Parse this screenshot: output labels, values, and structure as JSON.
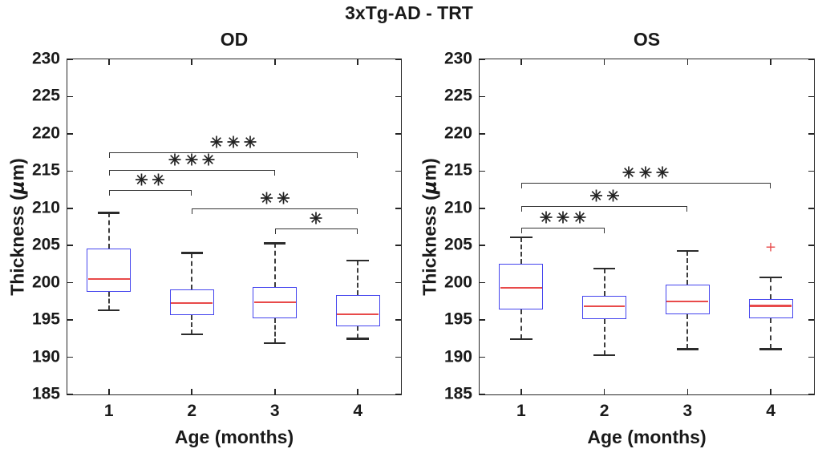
{
  "figure": {
    "title": "3xTg-AD - TRT"
  },
  "style": {
    "box_color": "#4444ee",
    "median_color": "#e84a4a",
    "outlier_color": "#e84a4a",
    "whisker_color": "#3c3c3c",
    "cap_color": "#2b2b2b",
    "bracket_color": "#333333",
    "star_color": "#222222",
    "axis_color": "#262626",
    "text_color": "#1a1a1a"
  },
  "chart_data": [
    {
      "type": "boxplot",
      "title": "OD",
      "xlabel": "Age (months)",
      "ylabel_parts": [
        "Thickness (",
        "μ",
        "m)"
      ],
      "xlim": [
        0.5,
        4.52
      ],
      "ylim": [
        185,
        230
      ],
      "yticks": [
        185,
        190,
        195,
        200,
        205,
        210,
        215,
        220,
        225,
        230
      ],
      "categories": [
        "1",
        "2",
        "3",
        "4"
      ],
      "boxes": [
        {
          "age": 1,
          "whisker_low": 196.3,
          "q1": 198.8,
          "median": 200.5,
          "q3": 204.6,
          "whisker_high": 209.4,
          "outliers": []
        },
        {
          "age": 2,
          "whisker_low": 193.1,
          "q1": 195.7,
          "median": 197.3,
          "q3": 199.1,
          "whisker_high": 204.0,
          "outliers": []
        },
        {
          "age": 3,
          "whisker_low": 191.9,
          "q1": 195.2,
          "median": 197.4,
          "q3": 199.4,
          "whisker_high": 205.3,
          "outliers": []
        },
        {
          "age": 4,
          "whisker_low": 192.5,
          "q1": 194.2,
          "median": 195.8,
          "q3": 198.4,
          "whisker_high": 203.0,
          "outliers": []
        }
      ],
      "significance": [
        {
          "group1": 1,
          "group2": 2,
          "stars": "**",
          "bar_y": 212.5
        },
        {
          "group1": 1,
          "group2": 3,
          "stars": "***",
          "bar_y": 215.1
        },
        {
          "group1": 1,
          "group2": 4,
          "stars": "***",
          "bar_y": 217.5
        },
        {
          "group1": 2,
          "group2": 4,
          "stars": "**",
          "bar_y": 210.0
        },
        {
          "group1": 3,
          "group2": 4,
          "stars": "*",
          "bar_y": 207.3
        }
      ]
    },
    {
      "type": "boxplot",
      "title": "OS",
      "xlabel": "Age (months)",
      "ylabel_parts": [
        "Thickness (",
        "μ",
        "m)"
      ],
      "xlim": [
        0.5,
        4.52
      ],
      "ylim": [
        185,
        230
      ],
      "yticks": [
        185,
        190,
        195,
        200,
        205,
        210,
        215,
        220,
        225,
        230
      ],
      "categories": [
        "1",
        "2",
        "3",
        "4"
      ],
      "boxes": [
        {
          "age": 1,
          "whisker_low": 192.4,
          "q1": 196.4,
          "median": 199.3,
          "q3": 202.5,
          "whisker_high": 206.1,
          "outliers": []
        },
        {
          "age": 2,
          "whisker_low": 190.3,
          "q1": 195.1,
          "median": 196.8,
          "q3": 198.2,
          "whisker_high": 201.9,
          "outliers": []
        },
        {
          "age": 3,
          "whisker_low": 191.1,
          "q1": 195.8,
          "median": 197.5,
          "q3": 199.8,
          "whisker_high": 204.3,
          "outliers": []
        },
        {
          "age": 4,
          "whisker_low": 191.1,
          "q1": 195.2,
          "median": 196.9,
          "q3": 197.8,
          "whisker_high": 200.7,
          "outliers": [
            204.7
          ]
        }
      ],
      "significance": [
        {
          "group1": 1,
          "group2": 2,
          "stars": "***",
          "bar_y": 207.4
        },
        {
          "group1": 1,
          "group2": 3,
          "stars": "**",
          "bar_y": 210.3
        },
        {
          "group1": 1,
          "group2": 4,
          "stars": "***",
          "bar_y": 213.4
        }
      ]
    }
  ]
}
